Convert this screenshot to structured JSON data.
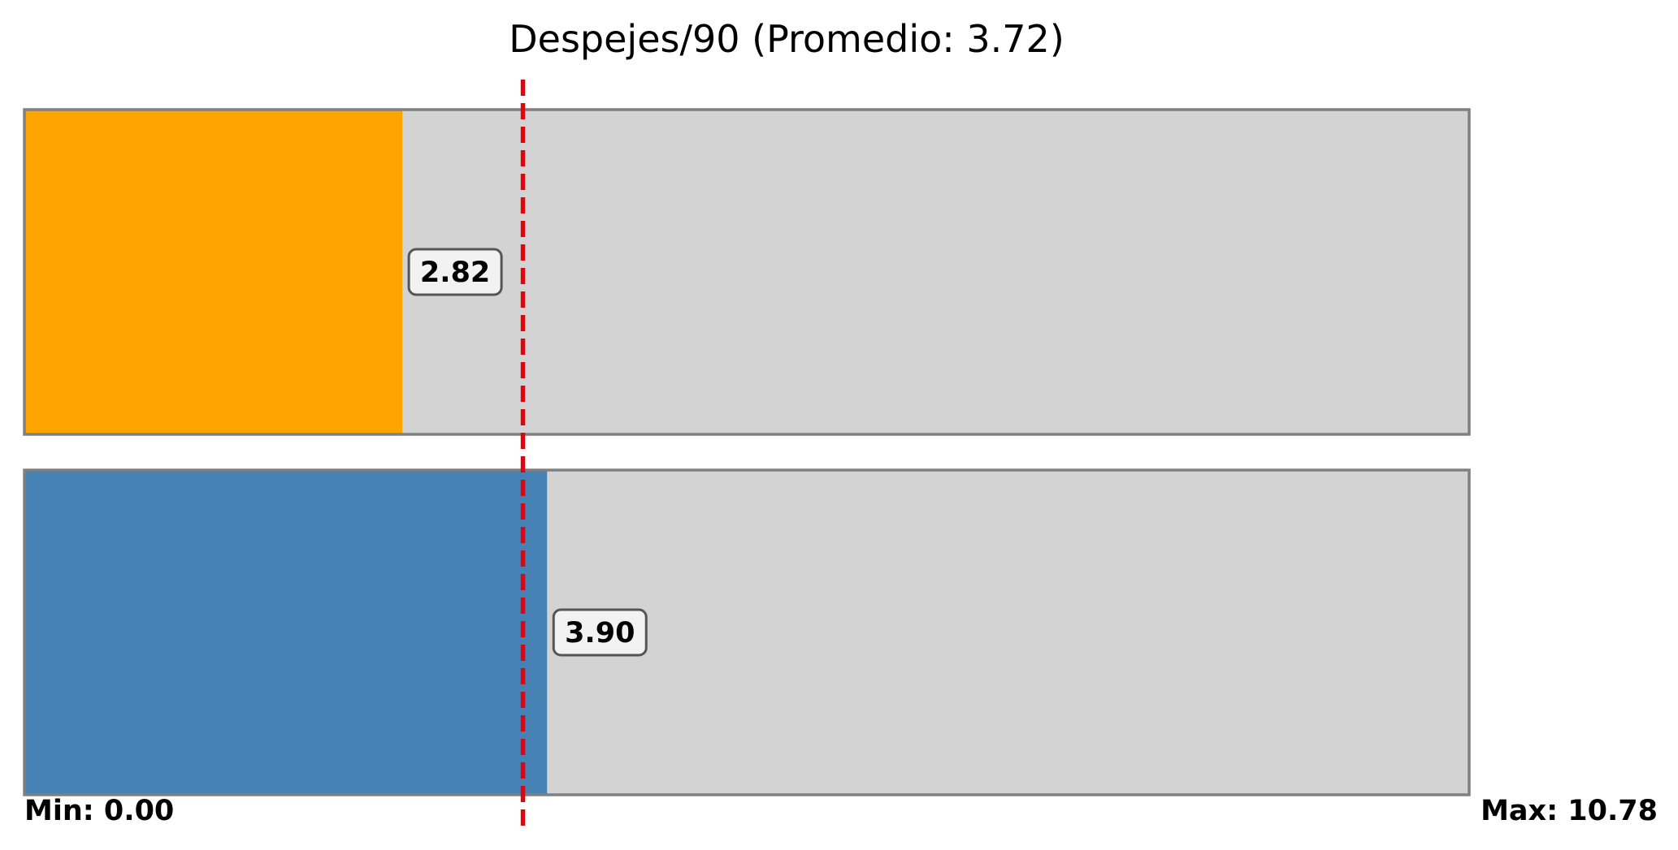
{
  "chart_data": {
    "type": "bar",
    "orientation": "horizontal",
    "title": "Despejes/90 (Promedio: 3.72)",
    "xlim": [
      0,
      10.78
    ],
    "min_label": "Min: 0.00",
    "max_label": "Max: 10.78",
    "reference_line": {
      "value": 3.72,
      "style": "dashed",
      "color": "#e8000b"
    },
    "background_color": "#d3d3d3",
    "border_color": "#808080",
    "series": [
      {
        "value": 2.82,
        "label": "2.82",
        "color": "#ffa500"
      },
      {
        "value": 3.9,
        "label": "3.90",
        "color": "#4682b4"
      }
    ],
    "grid": false
  }
}
